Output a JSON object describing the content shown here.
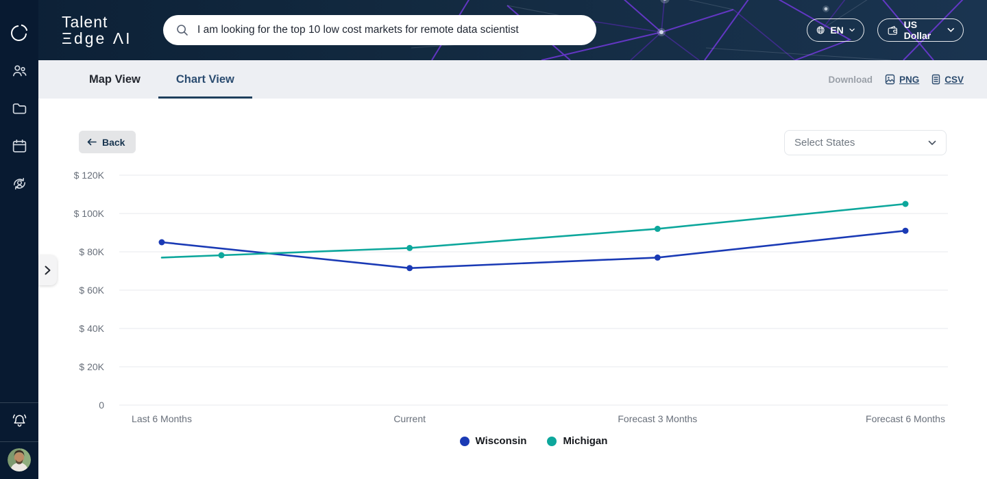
{
  "brand": {
    "line1": "Talent",
    "line2": "Ξdge ΛI"
  },
  "search": {
    "value": "I am looking for the top 10 low cost markets for remote data scientist"
  },
  "header": {
    "language": "EN",
    "currency": "US Dollar"
  },
  "tabs": {
    "map": "Map View",
    "chart": "Chart View"
  },
  "download": {
    "label": "Download",
    "png": "PNG",
    "csv": "CSV"
  },
  "toolbar": {
    "back": "Back",
    "select_states": "Select States"
  },
  "colors": {
    "wisconsin": "#1a3ab5",
    "michigan": "#0da79c",
    "sidebar_bg": "#081a31",
    "active_tab": "#2b4c70",
    "grid_line": "#e7e9ec",
    "axis_text": "#686f7a"
  },
  "chart_data": {
    "type": "line",
    "title": "",
    "xlabel": "",
    "ylabel": "",
    "categories": [
      "Last 6 Months",
      "Current",
      "Forecast 3 Months",
      "Forecast 6 Months"
    ],
    "series": [
      {
        "name": "Wisconsin",
        "color": "#1a3ab5",
        "values": [
          85000,
          71500,
          77000,
          91000
        ]
      },
      {
        "name": "Michigan",
        "color": "#0da79c",
        "values": [
          77000,
          82000,
          92000,
          105000
        ],
        "first_marker_offset_px": 87
      }
    ],
    "yticks": [
      0,
      20000,
      40000,
      60000,
      80000,
      100000,
      120000
    ],
    "ytick_labels": [
      "0",
      "$ 20K",
      "$ 40K",
      "$ 60K",
      "$ 80K",
      "$ 100K",
      "$ 120K"
    ],
    "ylim": [
      0,
      120000
    ],
    "grid": true,
    "legend_position": "bottom"
  }
}
